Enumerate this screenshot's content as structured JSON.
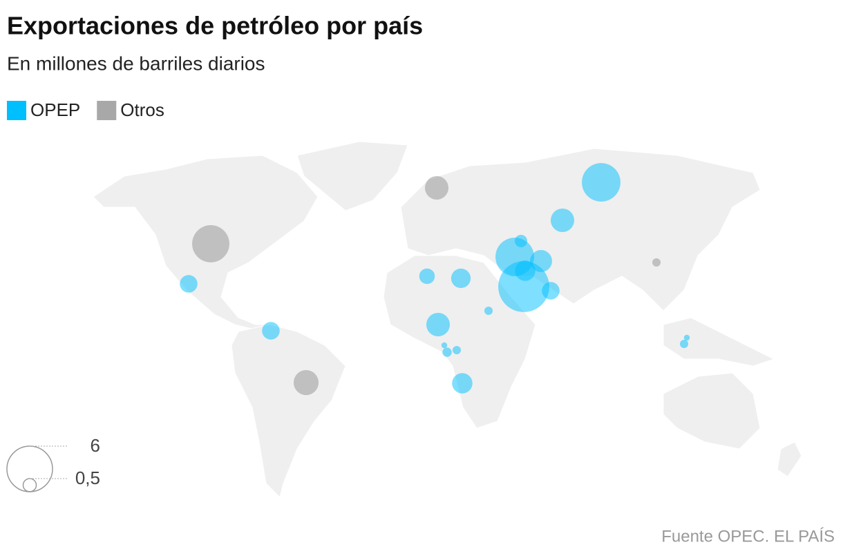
{
  "chart_data": {
    "type": "bubble-map",
    "title": "Exportaciones de petróleo por país",
    "subtitle": "En millones de barriles diarios",
    "series": [
      {
        "name": "OPEP",
        "color": "#00bfff",
        "values": [
          7.5,
          4.3,
          4.3,
          1.2,
          1.4,
          0.9,
          1.6,
          0.45,
          0.9,
          0.9,
          0.7,
          1.1,
          1.6,
          1.2,
          0.2,
          0.25,
          0.2,
          0.1,
          0.2,
          0.1
        ]
      },
      {
        "name": "Otros",
        "color": "#999999",
        "values": [
          4.0,
          1.6,
          1.8,
          0.2
        ]
      }
    ],
    "size_legend": [
      6,
      {
        "value": 0.5,
        "label": "0,5"
      }
    ],
    "source": "Fuente OPEC. EL PAÍS"
  }
}
